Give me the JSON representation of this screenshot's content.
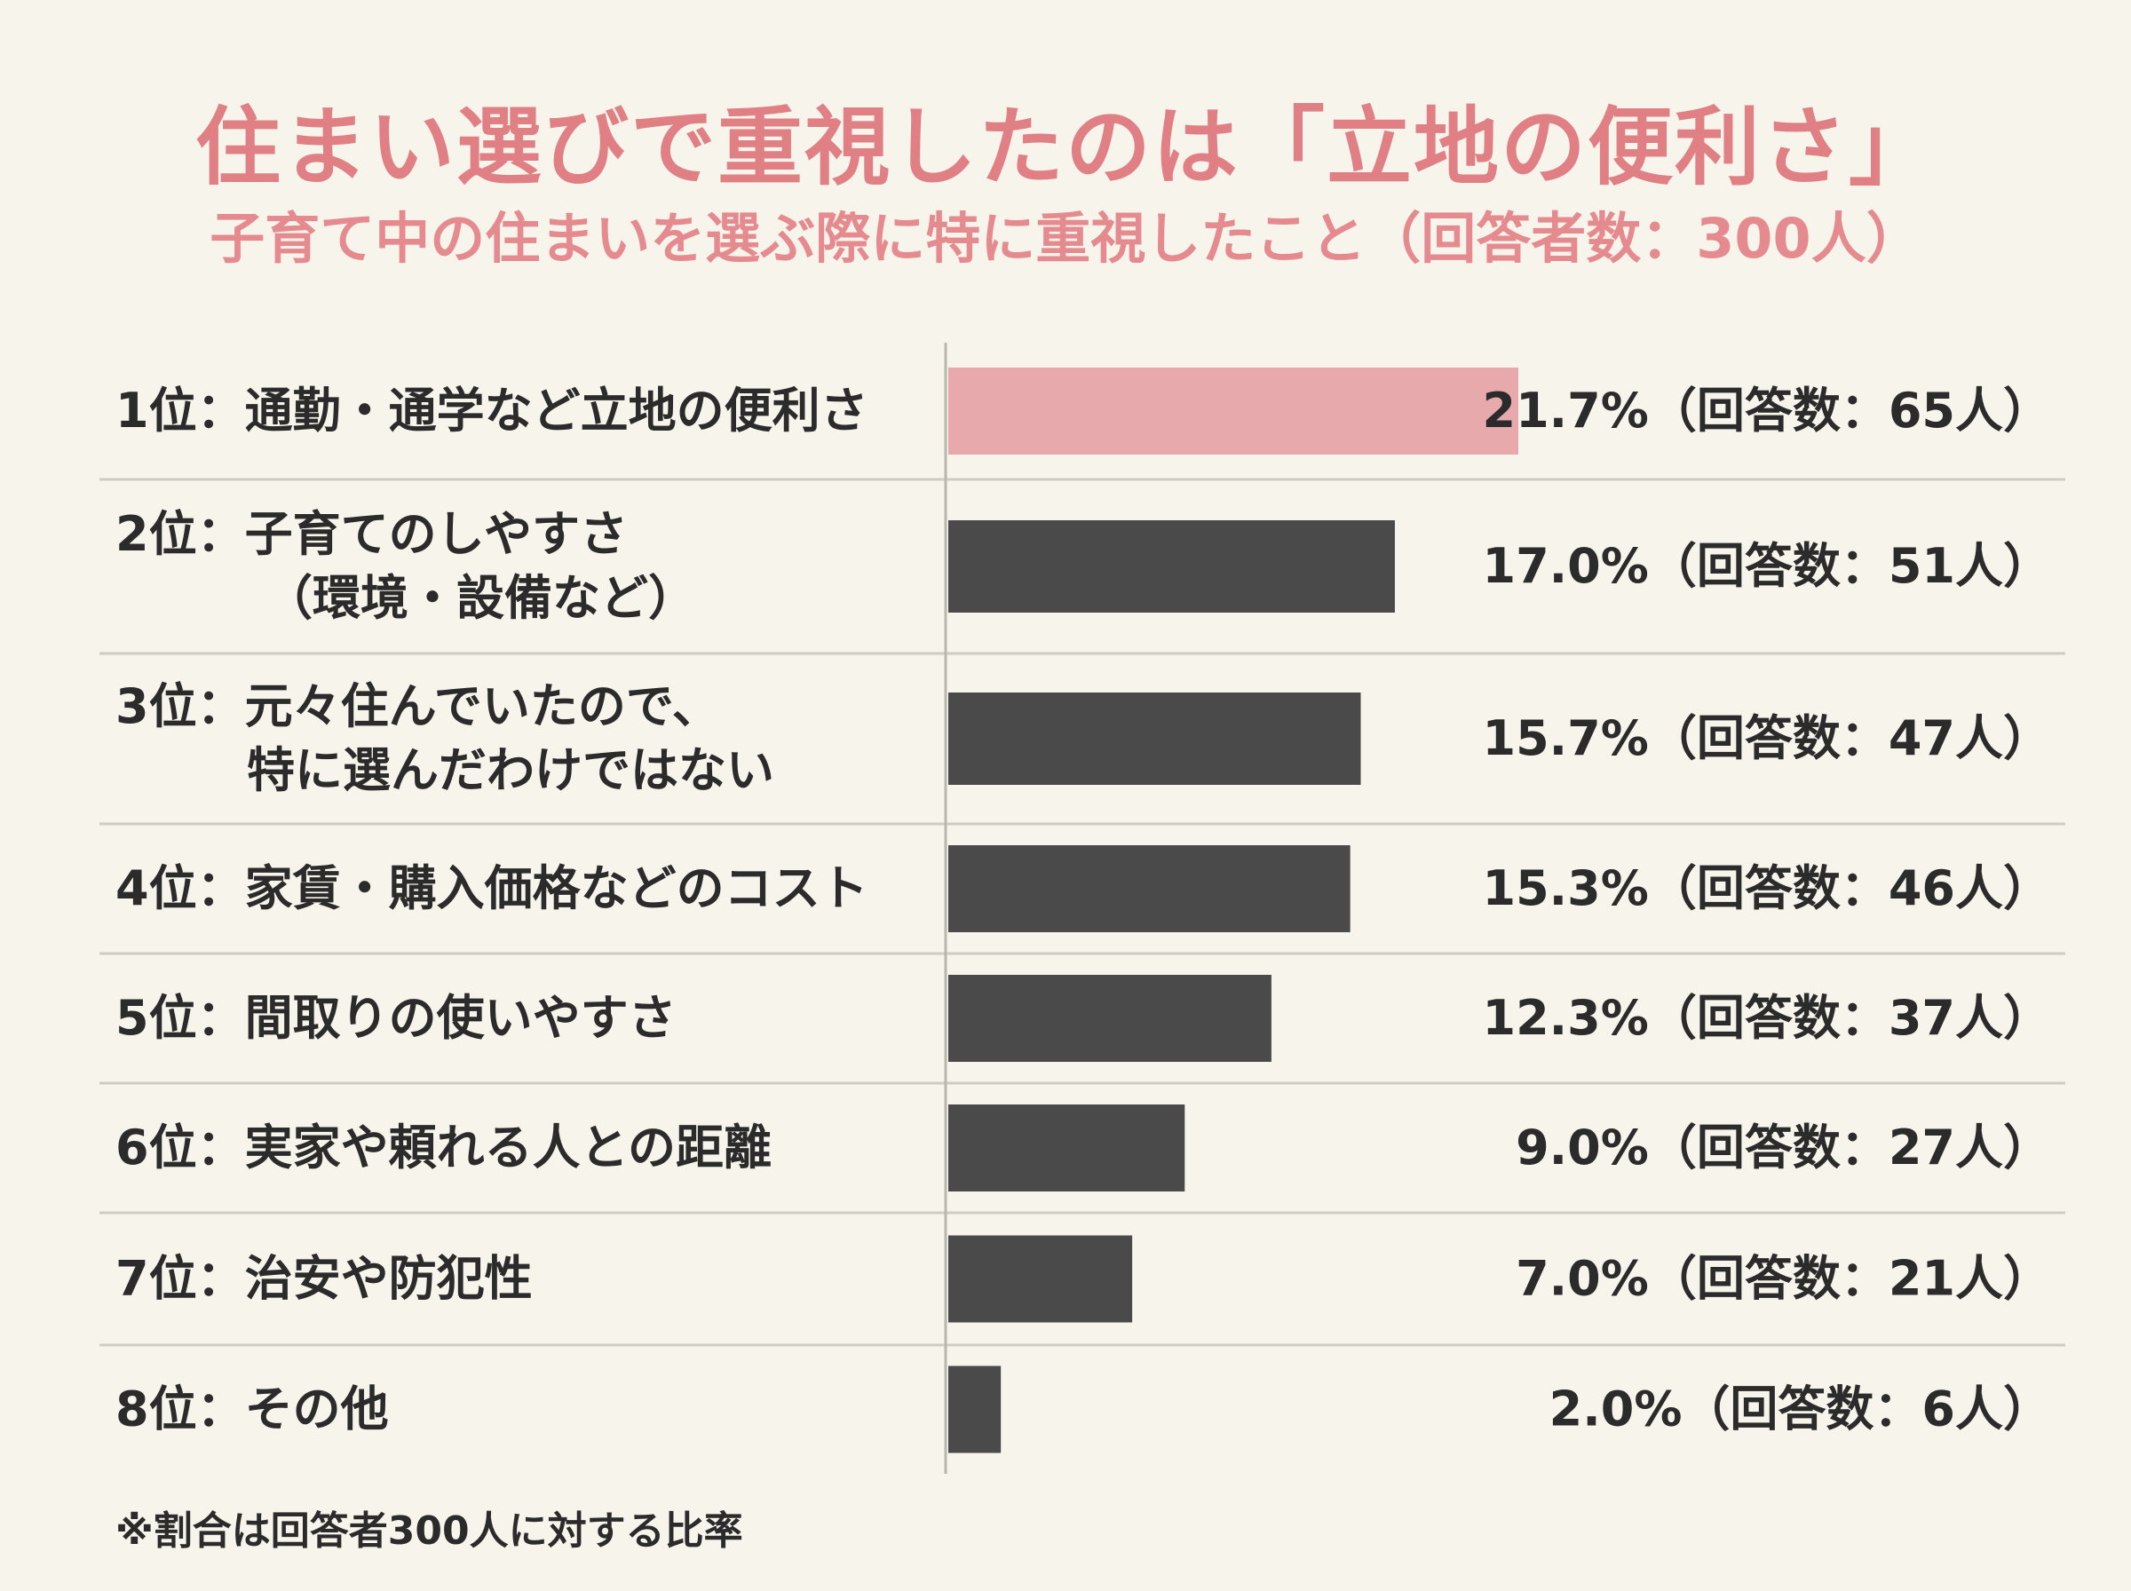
{
  "chart_data": {
    "type": "bar",
    "orientation": "horizontal",
    "title": "住まい選びで重視したのは「立地の便利さ」",
    "subtitle": "子育て中の住まいを選ぶ際に特に重視したこと（回答者数：300人）",
    "categories": [
      [
        "1位：通勤・通学など立地の便利さ"
      ],
      [
        "2位：子育てのしやすさ",
        "（環境・設備など）"
      ],
      [
        "3位：元々住んでいたので、",
        "特に選んだわけではない"
      ],
      [
        "4位：家賃・購入価格などのコスト"
      ],
      [
        "5位：間取りの使いやすさ"
      ],
      [
        "6位：実家や頼れる人との距離"
      ],
      [
        "7位：治安や防犯性"
      ],
      [
        "8位：その他"
      ]
    ],
    "values": [
      21.7,
      17.0,
      15.7,
      15.3,
      12.3,
      9.0,
      7.0,
      2.0
    ],
    "value_labels": [
      "21.7%（回答数：65人）",
      "17.0%（回答数：51人）",
      "15.7%（回答数：47人）",
      "15.3%（回答数：46人）",
      "12.3%（回答数：37人）",
      "9.0%（回答数：27人）",
      "7.0%（回答数：21人）",
      "2.0%（回答数：6人）"
    ],
    "highlight_color": "#e7a9ac",
    "bar_color": "#4a4a4a",
    "footnote": "※割合は回答者300人に対する比率"
  }
}
